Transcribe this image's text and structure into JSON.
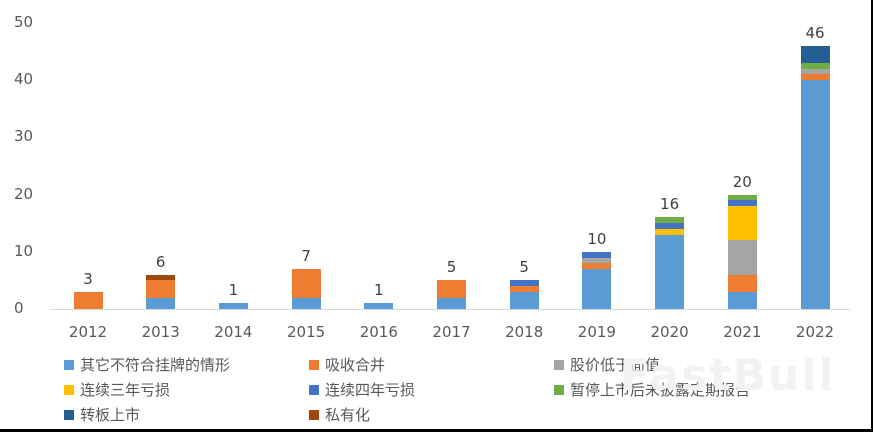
{
  "chart_data": {
    "type": "bar",
    "stacked": true,
    "title": "",
    "xlabel": "",
    "ylabel": "",
    "ylim": [
      0,
      50
    ],
    "yticks": [
      0,
      10,
      20,
      30,
      40,
      50
    ],
    "grid": false,
    "legend_position": "bottom",
    "categories": [
      "2012",
      "2013",
      "2014",
      "2015",
      "2016",
      "2017",
      "2018",
      "2019",
      "2020",
      "2021",
      "2022"
    ],
    "totals": [
      3,
      6,
      1,
      7,
      1,
      5,
      5,
      10,
      16,
      20,
      46
    ],
    "series": [
      {
        "name": "其它不符合挂牌的情形",
        "color": "#5b9bd5",
        "values": [
          0,
          2,
          1,
          2,
          1,
          2,
          3,
          7,
          13,
          3,
          40
        ]
      },
      {
        "name": "吸收合并",
        "color": "#ed7d31",
        "values": [
          3,
          3,
          0,
          5,
          0,
          3,
          1,
          1,
          0,
          3,
          1
        ]
      },
      {
        "name": "股价低于面值",
        "color": "#a5a5a5",
        "values": [
          0,
          0,
          0,
          0,
          0,
          0,
          0,
          1,
          0,
          6,
          1
        ]
      },
      {
        "name": "连续三年亏损",
        "color": "#ffc000",
        "values": [
          0,
          0,
          0,
          0,
          0,
          0,
          0,
          0,
          1,
          6,
          0
        ]
      },
      {
        "name": "连续四年亏损",
        "color": "#4472c4",
        "values": [
          0,
          0,
          0,
          0,
          0,
          0,
          1,
          1,
          1,
          1,
          0
        ]
      },
      {
        "name": "暂停上市后未披露定期报告",
        "color": "#70ad47",
        "values": [
          0,
          0,
          0,
          0,
          0,
          0,
          0,
          0,
          1,
          1,
          1
        ]
      },
      {
        "name": "转板上市",
        "color": "#255e91",
        "values": [
          0,
          0,
          0,
          0,
          0,
          0,
          0,
          0,
          0,
          0,
          3
        ]
      },
      {
        "name": "私有化",
        "color": "#9e480e",
        "values": [
          0,
          1,
          0,
          0,
          0,
          0,
          0,
          0,
          0,
          0,
          0
        ]
      }
    ]
  },
  "watermark": "FastBull"
}
